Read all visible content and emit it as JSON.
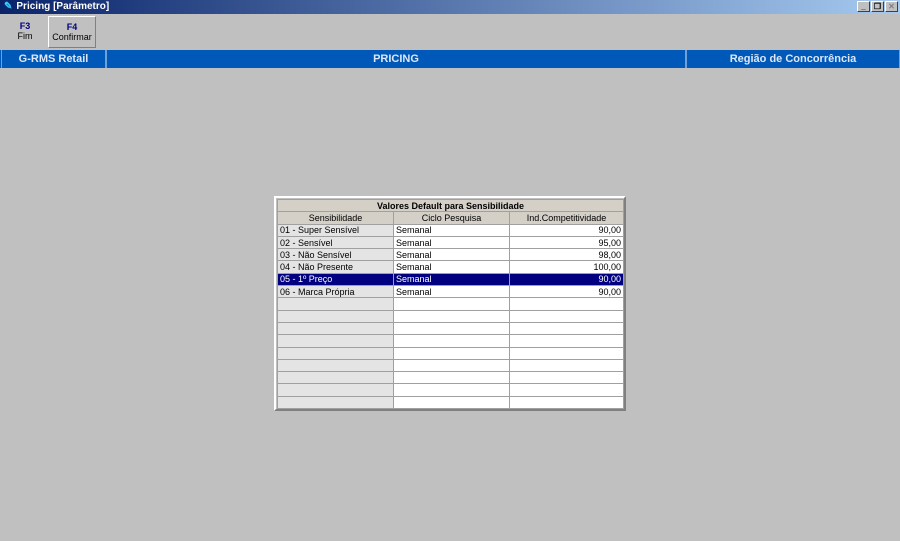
{
  "window": {
    "title": "Pricing [Parâmetro]",
    "minimize": "_",
    "restore": "❐",
    "close": "✕"
  },
  "toolbar": [
    {
      "key": "F3",
      "label": "Fim"
    },
    {
      "key": "F4",
      "label": "Confirmar"
    }
  ],
  "band": {
    "left": "G-RMS Retail",
    "center": "PRICING",
    "right": "Região de Concorrência"
  },
  "grid": {
    "title": "Valores Default para Sensibilidade",
    "columns": [
      "Sensibilidade",
      "Ciclo Pesquisa",
      "Ind.Competitividade"
    ],
    "rows": [
      [
        "01 - Super Sensível",
        "Semanal",
        "90,00"
      ],
      [
        "02 - Sensível",
        "Semanal",
        "95,00"
      ],
      [
        "03 - Não Sensível",
        "Semanal",
        "98,00"
      ],
      [
        "04 - Não Presente",
        "Semanal",
        "100,00"
      ],
      [
        "05 - 1º Preço",
        "Semanal",
        "90,00"
      ],
      [
        "06 - Marca Própria",
        "Semanal",
        "90,00"
      ]
    ],
    "selected_row": 4,
    "empty_rows": 9
  }
}
